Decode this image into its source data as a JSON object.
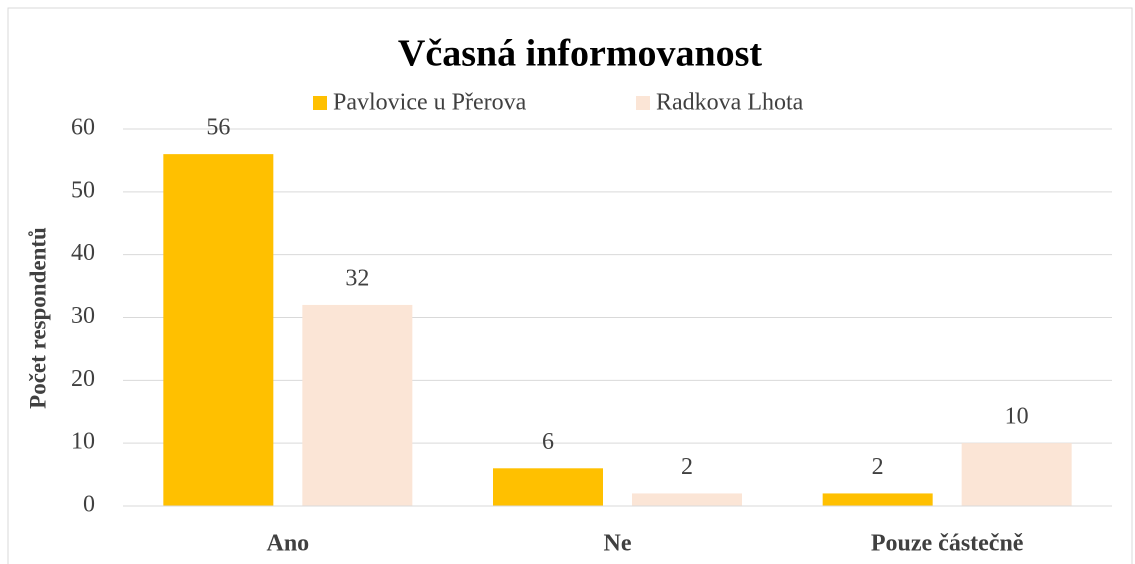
{
  "chart_data": {
    "type": "bar",
    "title": "Včasná informovanost",
    "y_label": "Počet respondentů",
    "categories": [
      "Ano",
      "Ne",
      "Pouze částečně"
    ],
    "series": [
      {
        "name": "Pavlovice u Přerova",
        "color": "#FFC000",
        "values": [
          56,
          6,
          2
        ]
      },
      {
        "name": "Radkova Lhota",
        "color": "#FBE5D6",
        "values": [
          32,
          2,
          10
        ]
      }
    ],
    "ylim": [
      0,
      60
    ],
    "yticks": [
      0,
      10,
      20,
      30,
      40,
      50,
      60
    ],
    "grid": true,
    "legend": "top"
  }
}
